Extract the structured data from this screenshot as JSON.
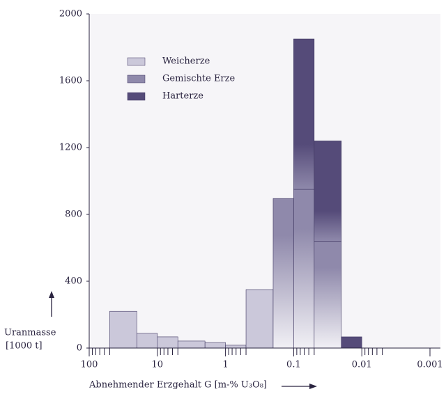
{
  "chart_data": {
    "type": "histogram",
    "ylabel": [
      "Uranmasse",
      "[1000 t]"
    ],
    "xlabel": "Abnehmender Erzgehalt G [m-% U₃O₈]",
    "log_x": true,
    "bins": [
      50,
      20,
      10,
      5,
      2,
      1,
      0.5,
      0.2,
      0.1,
      0.05,
      0.02,
      0.01
    ],
    "series": [
      {
        "name": "Weicherze",
        "color": "#cbc8da",
        "values": [
          220,
          88,
          67,
          42,
          33,
          17,
          350,
          0,
          0,
          0,
          0
        ]
      },
      {
        "name": "Gemischte Erze",
        "color": "#8f89ab",
        "values": [
          0,
          0,
          0,
          0,
          0,
          0,
          0,
          895,
          950,
          640,
          0
        ]
      },
      {
        "name": "Harterze",
        "color": "#554b79",
        "values": [
          0,
          0,
          0,
          0,
          0,
          0,
          0,
          0,
          900,
          600,
          67
        ]
      }
    ],
    "xlim": [
      100,
      0.001
    ],
    "xticks": [
      100,
      10,
      1,
      0.1,
      0.01,
      0.001
    ],
    "xminorticks": [
      90,
      80,
      70,
      60,
      50,
      9,
      8,
      7,
      6,
      5,
      0.9,
      0.8,
      0.7,
      0.6,
      0.5,
      0.09,
      0.08,
      0.07,
      0.06,
      0.05,
      0.009,
      0.008,
      0.007,
      0.006,
      0.005
    ],
    "ylim": [
      0,
      2000
    ],
    "yticks": [
      0,
      400,
      800,
      1200,
      1600,
      2000
    ],
    "legend": "upper left"
  }
}
